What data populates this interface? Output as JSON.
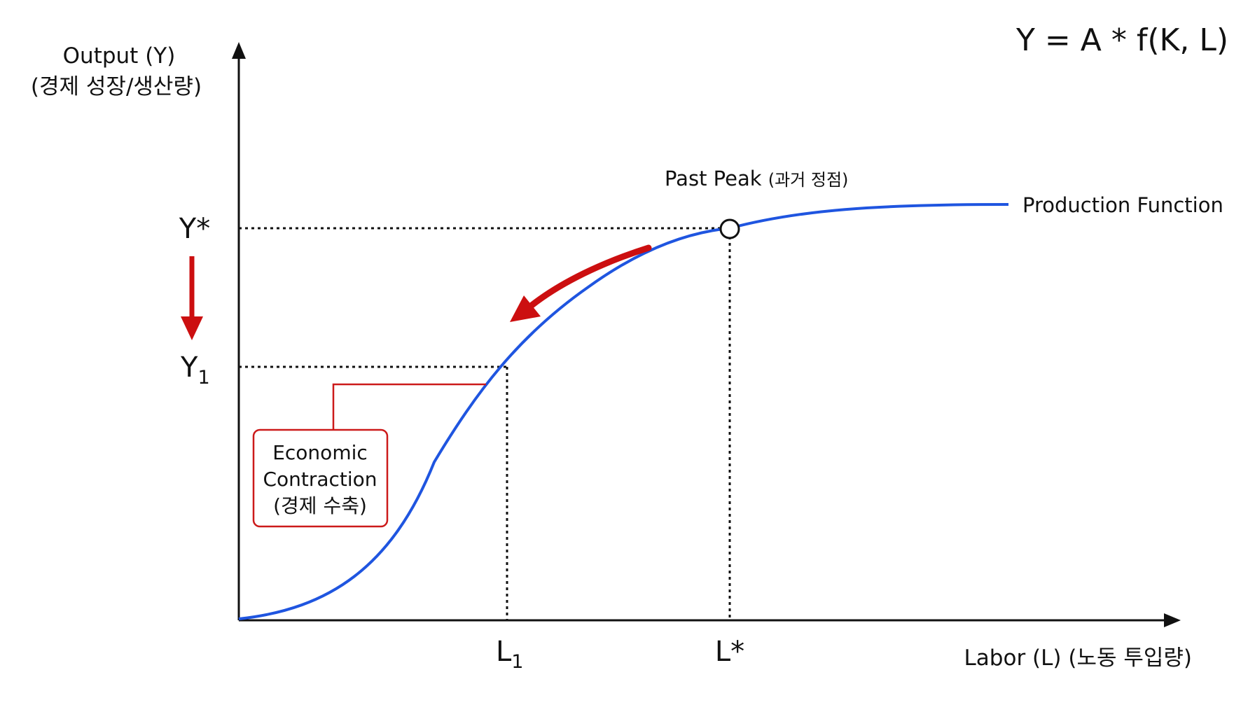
{
  "formula": "Y = A * f(K, L)",
  "y_axis": {
    "label_line1": "Output (Y)",
    "label_line2": "(경제 성장/생산량)"
  },
  "x_axis": {
    "label": "Labor (L) (노동 투입량)"
  },
  "ticks": {
    "y_star": "Y*",
    "y1_base": "Y",
    "y1_sub": "1",
    "l1_base": "L",
    "l1_sub": "1",
    "l_star": "L*"
  },
  "curve_label": "Production Function",
  "peak": {
    "label": "Past Peak",
    "label_ko": "(과거 정점)"
  },
  "callout": {
    "line1": "Economic",
    "line2": "Contraction",
    "line3": "(경제 수축)"
  },
  "colors": {
    "curve": "#1f55e0",
    "arrow": "#cc0f10",
    "axis": "#111111",
    "callout_border": "#cc1a1a"
  },
  "chart_data": {
    "type": "line",
    "title": "",
    "xlabel": "Labor (L) (노동 투입량)",
    "ylabel": "Output (Y) (경제 성장/생산량)",
    "series": [
      {
        "name": "Production Function"
      }
    ],
    "marked_points": [
      {
        "x": "L*",
        "y": "Y*",
        "label": "Past Peak (과거 정점)"
      },
      {
        "x": "L1",
        "y": "Y1"
      }
    ],
    "grid": false,
    "annotations": [
      "Economic Contraction (경제 수축)"
    ]
  }
}
